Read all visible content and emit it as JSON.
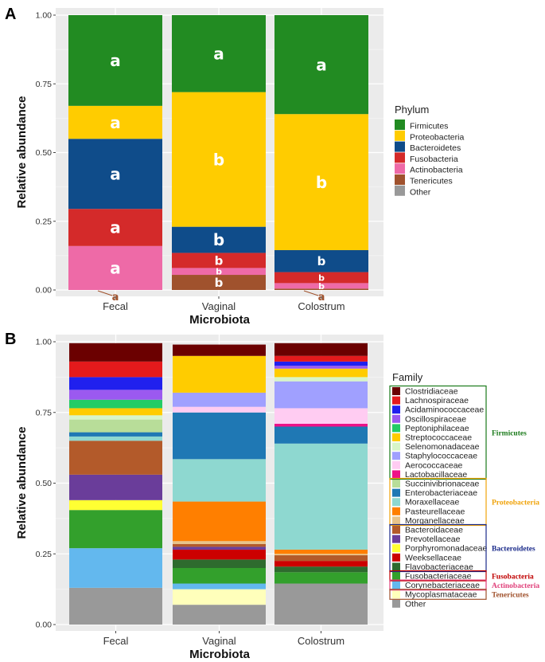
{
  "panel_a_label": "A",
  "panel_b_label": "B",
  "chart_data": [
    {
      "type": "bar",
      "stacked": true,
      "xlabel": "Microbiota",
      "ylabel": "Relative abundance",
      "ylim": [
        0,
        1
      ],
      "yticks": [
        "0.00",
        "0.25",
        "0.50",
        "0.75",
        "1.00"
      ],
      "categories": [
        "Fecal",
        "Vaginal",
        "Colostrum"
      ],
      "legend_title": "Phylum",
      "series": [
        {
          "name": "Firmicutes",
          "color": "#228b22",
          "values": [
            0.33,
            0.28,
            0.36
          ],
          "letters": [
            "a",
            "a",
            "a"
          ]
        },
        {
          "name": "Proteobacteria",
          "color": "#ffcc00",
          "values": [
            0.12,
            0.49,
            0.495
          ],
          "letters": [
            "a",
            "b",
            "b"
          ]
        },
        {
          "name": "Bacteroidetes",
          "color": "#0f4c8a",
          "values": [
            0.255,
            0.095,
            0.08
          ],
          "letters": [
            "a",
            "b",
            "b"
          ]
        },
        {
          "name": "Fusobacteria",
          "color": "#d42a2a",
          "values": [
            0.135,
            0.055,
            0.04
          ],
          "letters": [
            "a",
            "b",
            "b"
          ]
        },
        {
          "name": "Actinobacteria",
          "color": "#ee6aa7",
          "values": [
            0.16,
            0.025,
            0.02
          ],
          "letters": [
            "a",
            "b",
            "b"
          ]
        },
        {
          "name": "Tenericutes",
          "color": "#a0522d",
          "values": [
            0.0,
            0.055,
            0.005
          ],
          "letters": [
            "a",
            "b",
            "a"
          ]
        },
        {
          "name": "Other",
          "color": "#999999",
          "values": [
            0.0,
            0.0,
            0.0
          ],
          "letters": [
            "",
            "",
            ""
          ]
        }
      ]
    },
    {
      "type": "bar",
      "stacked": true,
      "xlabel": "Microbiota",
      "ylabel": "Relative abundance",
      "ylim": [
        0,
        1
      ],
      "yticks": [
        "0.00",
        "0.25",
        "0.50",
        "0.75",
        "1.00"
      ],
      "categories": [
        "Fecal",
        "Vaginal",
        "Colostrum"
      ],
      "legend_title": "Family",
      "series": [
        {
          "name": "Clostridiaceae",
          "color": "#6b0000",
          "values": [
            0.065,
            0.04,
            0.045
          ]
        },
        {
          "name": "Lachnospiraceae",
          "color": "#e41a1c",
          "values": [
            0.055,
            0.0,
            0.02
          ]
        },
        {
          "name": "Acidaminococcaceae",
          "color": "#2020ee",
          "values": [
            0.045,
            0.0,
            0.015
          ]
        },
        {
          "name": "Oscillospiraceae",
          "color": "#9b59f0",
          "values": [
            0.035,
            0.0,
            0.01
          ]
        },
        {
          "name": "Peptoniphilaceae",
          "color": "#22cc66",
          "values": [
            0.03,
            0.0,
            0.0
          ]
        },
        {
          "name": "Streptococcaceae",
          "color": "#ffcc00",
          "values": [
            0.025,
            0.13,
            0.03
          ]
        },
        {
          "name": "Selenomonadaceae",
          "color": "#d8f5c8",
          "values": [
            0.015,
            0.0,
            0.015
          ]
        },
        {
          "name": "Staphylococcaceae",
          "color": "#a0a0ff",
          "values": [
            0.0,
            0.05,
            0.095
          ]
        },
        {
          "name": "Aerococcaceae",
          "color": "#ffccf2",
          "values": [
            0.0,
            0.02,
            0.055
          ]
        },
        {
          "name": "Lactobacillaceae",
          "color": "#ee1188",
          "values": [
            0.0,
            0.0,
            0.01
          ]
        },
        {
          "name": "Succinivibrionaceae",
          "color": "#b8dd99",
          "values": [
            0.045,
            0.0,
            0.0
          ]
        },
        {
          "name": "Enterobacteriaceae",
          "color": "#1f78b4",
          "values": [
            0.015,
            0.165,
            0.06
          ]
        },
        {
          "name": "Moraxellaceae",
          "color": "#8ed8d0",
          "values": [
            0.015,
            0.15,
            0.375
          ]
        },
        {
          "name": "Pasteurellaceae",
          "color": "#ff7f00",
          "values": [
            0.0,
            0.14,
            0.015
          ]
        },
        {
          "name": "Morganellaceae",
          "color": "#e8c38a",
          "values": [
            0.0,
            0.01,
            0.005
          ]
        },
        {
          "name": "Bacteroidaceae",
          "color": "#b35a2a",
          "values": [
            0.12,
            0.01,
            0.02
          ]
        },
        {
          "name": "Prevotellaceae",
          "color": "#6a3d9a",
          "values": [
            0.09,
            0.01,
            0.0
          ]
        },
        {
          "name": "Porphyromonadaceae",
          "color": "#ffff33",
          "values": [
            0.035,
            0.0,
            0.0
          ]
        },
        {
          "name": "Weeksellaceae",
          "color": "#cc0000",
          "values": [
            0.0,
            0.035,
            0.02
          ]
        },
        {
          "name": "Flavobacteriaceae",
          "color": "#2e6b2e",
          "values": [
            0.0,
            0.03,
            0.02
          ]
        },
        {
          "name": "Fusobacteriaceae",
          "color": "#33a02c",
          "values": [
            0.135,
            0.055,
            0.04
          ]
        },
        {
          "name": "Corynebacteriaceae",
          "color": "#63b8ee",
          "values": [
            0.14,
            0.02,
            0.0
          ]
        },
        {
          "name": "Mycoplasmataceae",
          "color": "#ffffbb",
          "values": [
            0.0,
            0.055,
            0.0
          ]
        },
        {
          "name": "Other",
          "color": "#999999",
          "values": [
            0.13,
            0.07,
            0.145
          ]
        }
      ],
      "groups": [
        {
          "name": "Firmicutes",
          "color": "#1a7a1a",
          "first": 0,
          "last": 9
        },
        {
          "name": "Proteobacteria",
          "color": "#f0a30a",
          "first": 10,
          "last": 14
        },
        {
          "name": "Bacteroidetes",
          "color": "#1a2a8a",
          "first": 15,
          "last": 19
        },
        {
          "name": "Fusobacteria",
          "color": "#c00000",
          "first": 20,
          "last": 20
        },
        {
          "name": "Actinobacteria",
          "color": "#e0407a",
          "first": 21,
          "last": 21
        },
        {
          "name": "Tenericutes",
          "color": "#a0522d",
          "first": 22,
          "last": 22
        }
      ]
    }
  ]
}
